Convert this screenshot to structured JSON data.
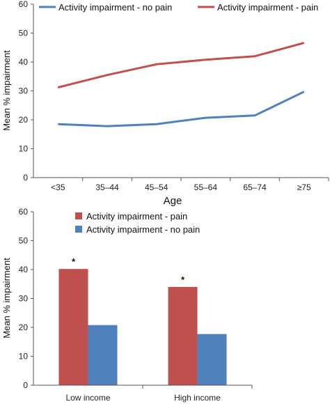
{
  "colors": {
    "pain": "#c0504d",
    "no_pain": "#4f81bd",
    "axis": "#555555"
  },
  "chart_data": [
    {
      "type": "line",
      "title": "",
      "xlabel": "Age",
      "ylabel": "Mean % impairment",
      "ylim": [
        0,
        60
      ],
      "yticks": [
        "0",
        "10",
        "20",
        "30",
        "40",
        "50",
        "60"
      ],
      "categories": [
        "<35",
        "35–44",
        "45–54",
        "55–64",
        "65–74",
        "≥75"
      ],
      "legend_position": "top",
      "series": [
        {
          "name": "Activity impairment - no pain",
          "color": "no_pain",
          "values": [
            18.5,
            17.8,
            18.5,
            20.7,
            21.5,
            29.7
          ]
        },
        {
          "name": "Activity impairment - pain",
          "color": "pain",
          "values": [
            31.2,
            35.5,
            39.2,
            40.8,
            42.0,
            46.6
          ]
        }
      ]
    },
    {
      "type": "bar",
      "title": "",
      "xlabel": "",
      "ylabel": "Mean % impairment",
      "ylim": [
        0,
        60
      ],
      "yticks": [
        "0",
        "10",
        "20",
        "30",
        "40",
        "50",
        "60"
      ],
      "categories": [
        "Low income",
        "High income"
      ],
      "legend_position": "top-center",
      "series": [
        {
          "name": "Activity impairment - pain",
          "color": "pain",
          "values": [
            40.2,
            34.0
          ]
        },
        {
          "name": "Activity impairment - no pain",
          "color": "no_pain",
          "values": [
            20.8,
            17.7
          ]
        }
      ],
      "annotations": [
        "*",
        "*"
      ]
    }
  ]
}
